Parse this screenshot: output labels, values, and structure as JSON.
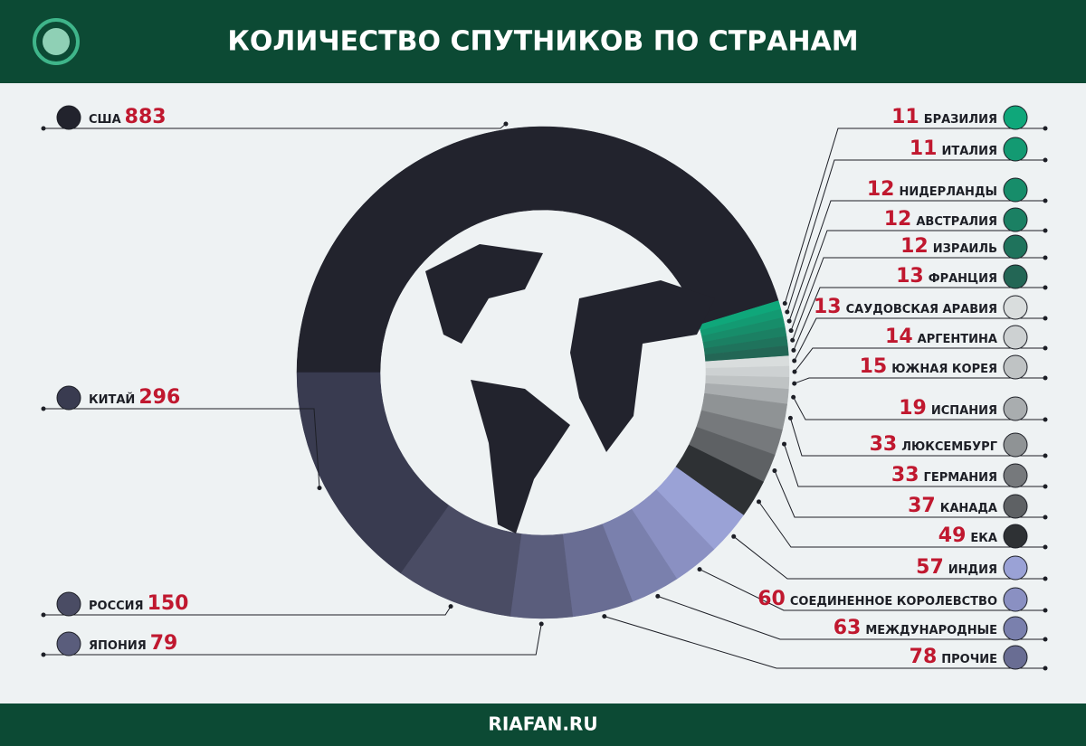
{
  "chart_data": {
    "type": "donut",
    "title": "КОЛИЧЕСТВО СПУТНИКОВ ПО СТРАНАМ",
    "credit": "RIAFAN.RU",
    "categories": [
      "США",
      "БРАЗИЛИЯ",
      "ИТАЛИЯ",
      "НИДЕРЛАНДЫ",
      "АВСТРАЛИЯ",
      "ИЗРАИЛЬ",
      "ФРАНЦИЯ",
      "САУДОВСКАЯ АРАВИЯ",
      "АРГЕНТИНА",
      "ЮЖНАЯ КОРЕЯ",
      "ИСПАНИЯ",
      "ЛЮКСЕМБУРГ",
      "ГЕРМАНИЯ",
      "КАНАДА",
      "ЕКА",
      "ИНДИЯ",
      "СОЕДИНЕННОЕ КОРОЛЕВСТВО",
      "МЕЖДУНАРОДНЫЕ",
      "ПРОЧИЕ",
      "ЯПОНИЯ",
      "РОССИЯ",
      "КИТАЙ"
    ],
    "values": [
      883,
      11,
      11,
      12,
      12,
      12,
      13,
      13,
      14,
      15,
      19,
      33,
      33,
      37,
      49,
      57,
      60,
      63,
      78,
      79,
      150,
      296
    ],
    "colors": [
      "#22232d",
      "#0fa77a",
      "#139a72",
      "#178d6a",
      "#1b8063",
      "#1f735c",
      "#236655",
      "#d9dddd",
      "#cdd1d2",
      "#bfc3c4",
      "#a9adaf",
      "#8f9395",
      "#76797c",
      "#5e6164",
      "#2e3134",
      "#9aa2d6",
      "#8a90c2",
      "#7a80ad",
      "#696d93",
      "#5a5d7c",
      "#4a4c64",
      "#393b50"
    ]
  }
}
